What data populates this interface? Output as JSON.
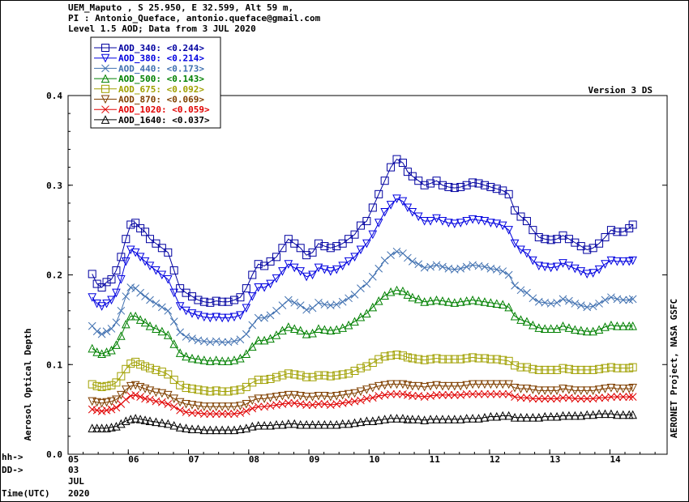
{
  "header": {
    "line1": "UEM_Maputo , S 25.950, E  32.599, Alt 59 m,",
    "line2": "PI : Antonio_Queface, antonio.queface@gmail.com",
    "line3": "Level 1.5 AOD; Data from 3 JUL 2020"
  },
  "version_label": "Version 3 DS",
  "right_label": "AERONET Project, NASA GSFC",
  "left_footer": {
    "hh": "hh->",
    "dd": "DD->",
    "time": "Time(UTC)"
  },
  "date_labels": {
    "day": "03",
    "month": "JUL",
    "year": "2020"
  },
  "chart_data": {
    "type": "line",
    "title": "",
    "xlabel": "",
    "ylabel": "Aerosol Optical Depth",
    "xlim": [
      5,
      14.95
    ],
    "ylim": [
      0.0,
      0.4
    ],
    "x_ticks": [
      "05",
      "06",
      "07",
      "08",
      "09",
      "10",
      "11",
      "12",
      "13",
      "14"
    ],
    "y_ticks": [
      "0.0",
      "0.1",
      "0.2",
      "0.3",
      "0.4"
    ],
    "legend_position": "top-left",
    "grid": false,
    "x": [
      5.4,
      5.48,
      5.56,
      5.64,
      5.72,
      5.8,
      5.88,
      5.96,
      6.04,
      6.12,
      6.2,
      6.28,
      6.36,
      6.46,
      6.56,
      6.66,
      6.76,
      6.86,
      6.96,
      7.06,
      7.16,
      7.26,
      7.36,
      7.46,
      7.56,
      7.66,
      7.76,
      7.86,
      7.96,
      8.06,
      8.16,
      8.26,
      8.36,
      8.46,
      8.56,
      8.66,
      8.76,
      8.86,
      8.96,
      9.06,
      9.16,
      9.26,
      9.36,
      9.46,
      9.56,
      9.66,
      9.76,
      9.86,
      9.96,
      10.06,
      10.16,
      10.26,
      10.36,
      10.46,
      10.56,
      10.64,
      10.72,
      10.82,
      10.92,
      11.02,
      11.12,
      11.22,
      11.32,
      11.42,
      11.52,
      11.62,
      11.72,
      11.82,
      11.92,
      12.02,
      12.12,
      12.22,
      12.32,
      12.42,
      12.52,
      12.62,
      12.72,
      12.82,
      12.92,
      13.02,
      13.12,
      13.22,
      13.32,
      13.42,
      13.52,
      13.62,
      13.72,
      13.82,
      13.92,
      14.02,
      14.12,
      14.22,
      14.32,
      14.38
    ],
    "series": [
      {
        "name": "AOD_340",
        "label": "AOD_340: <0.244>",
        "color": "#0000a0",
        "marker": "square",
        "values": [
          0.201,
          0.19,
          0.186,
          0.192,
          0.195,
          0.205,
          0.22,
          0.24,
          0.256,
          0.258,
          0.252,
          0.248,
          0.24,
          0.235,
          0.23,
          0.225,
          0.205,
          0.185,
          0.18,
          0.176,
          0.172,
          0.17,
          0.169,
          0.171,
          0.17,
          0.17,
          0.172,
          0.175,
          0.185,
          0.2,
          0.212,
          0.21,
          0.215,
          0.22,
          0.23,
          0.24,
          0.235,
          0.23,
          0.222,
          0.225,
          0.235,
          0.232,
          0.23,
          0.232,
          0.235,
          0.24,
          0.245,
          0.255,
          0.26,
          0.275,
          0.29,
          0.305,
          0.32,
          0.329,
          0.325,
          0.315,
          0.31,
          0.305,
          0.3,
          0.302,
          0.305,
          0.3,
          0.298,
          0.297,
          0.298,
          0.3,
          0.303,
          0.302,
          0.3,
          0.298,
          0.296,
          0.294,
          0.29,
          0.272,
          0.265,
          0.26,
          0.25,
          0.242,
          0.24,
          0.239,
          0.24,
          0.244,
          0.24,
          0.236,
          0.232,
          0.228,
          0.23,
          0.235,
          0.242,
          0.25,
          0.248,
          0.248,
          0.252,
          0.256
        ]
      },
      {
        "name": "AOD_380",
        "label": "AOD_380: <0.214>",
        "color": "#0000e0",
        "marker": "triangle-down",
        "values": [
          0.175,
          0.168,
          0.165,
          0.168,
          0.172,
          0.18,
          0.195,
          0.215,
          0.228,
          0.225,
          0.22,
          0.215,
          0.21,
          0.205,
          0.2,
          0.195,
          0.18,
          0.165,
          0.16,
          0.157,
          0.155,
          0.153,
          0.152,
          0.153,
          0.152,
          0.152,
          0.153,
          0.155,
          0.163,
          0.176,
          0.186,
          0.186,
          0.19,
          0.196,
          0.204,
          0.212,
          0.208,
          0.204,
          0.198,
          0.2,
          0.208,
          0.206,
          0.204,
          0.206,
          0.21,
          0.215,
          0.22,
          0.228,
          0.235,
          0.245,
          0.258,
          0.27,
          0.278,
          0.285,
          0.282,
          0.275,
          0.27,
          0.265,
          0.26,
          0.26,
          0.263,
          0.26,
          0.258,
          0.257,
          0.258,
          0.26,
          0.262,
          0.261,
          0.26,
          0.258,
          0.257,
          0.255,
          0.25,
          0.235,
          0.228,
          0.224,
          0.216,
          0.21,
          0.209,
          0.208,
          0.209,
          0.213,
          0.21,
          0.207,
          0.204,
          0.201,
          0.202,
          0.206,
          0.212,
          0.216,
          0.215,
          0.215,
          0.215,
          0.216
        ]
      },
      {
        "name": "AOD_440",
        "label": "AOD_440: <0.173>",
        "color": "#4070b0",
        "marker": "x",
        "values": [
          0.143,
          0.137,
          0.134,
          0.137,
          0.14,
          0.147,
          0.16,
          0.176,
          0.186,
          0.185,
          0.18,
          0.176,
          0.172,
          0.168,
          0.164,
          0.16,
          0.148,
          0.136,
          0.131,
          0.129,
          0.127,
          0.126,
          0.125,
          0.126,
          0.125,
          0.125,
          0.126,
          0.128,
          0.134,
          0.144,
          0.152,
          0.152,
          0.155,
          0.16,
          0.166,
          0.172,
          0.169,
          0.166,
          0.161,
          0.163,
          0.169,
          0.167,
          0.166,
          0.167,
          0.17,
          0.174,
          0.178,
          0.185,
          0.19,
          0.198,
          0.207,
          0.216,
          0.222,
          0.226,
          0.224,
          0.219,
          0.215,
          0.212,
          0.208,
          0.209,
          0.211,
          0.209,
          0.207,
          0.206,
          0.207,
          0.209,
          0.211,
          0.21,
          0.209,
          0.207,
          0.206,
          0.204,
          0.2,
          0.188,
          0.183,
          0.18,
          0.174,
          0.17,
          0.169,
          0.168,
          0.169,
          0.173,
          0.171,
          0.168,
          0.166,
          0.164,
          0.165,
          0.168,
          0.172,
          0.175,
          0.173,
          0.172,
          0.172,
          0.173
        ]
      },
      {
        "name": "AOD_500",
        "label": "AOD_500: <0.143>",
        "color": "#008000",
        "marker": "triangle",
        "values": [
          0.118,
          0.114,
          0.112,
          0.114,
          0.116,
          0.122,
          0.132,
          0.145,
          0.154,
          0.154,
          0.15,
          0.147,
          0.143,
          0.14,
          0.137,
          0.133,
          0.123,
          0.113,
          0.109,
          0.107,
          0.106,
          0.105,
          0.104,
          0.105,
          0.104,
          0.104,
          0.105,
          0.107,
          0.112,
          0.12,
          0.127,
          0.127,
          0.129,
          0.133,
          0.138,
          0.142,
          0.14,
          0.138,
          0.134,
          0.135,
          0.14,
          0.139,
          0.138,
          0.139,
          0.141,
          0.144,
          0.148,
          0.153,
          0.157,
          0.164,
          0.171,
          0.177,
          0.181,
          0.183,
          0.182,
          0.178,
          0.175,
          0.173,
          0.17,
          0.171,
          0.172,
          0.171,
          0.17,
          0.169,
          0.17,
          0.171,
          0.172,
          0.171,
          0.17,
          0.169,
          0.168,
          0.167,
          0.164,
          0.154,
          0.15,
          0.148,
          0.144,
          0.141,
          0.14,
          0.14,
          0.14,
          0.143,
          0.141,
          0.139,
          0.138,
          0.137,
          0.137,
          0.139,
          0.142,
          0.144,
          0.143,
          0.143,
          0.143,
          0.143
        ]
      },
      {
        "name": "AOD_675",
        "label": "AOD_675: <0.092>",
        "color": "#a0a000",
        "marker": "square",
        "values": [
          0.078,
          0.076,
          0.075,
          0.076,
          0.077,
          0.08,
          0.087,
          0.095,
          0.101,
          0.103,
          0.1,
          0.098,
          0.096,
          0.094,
          0.092,
          0.089,
          0.083,
          0.077,
          0.074,
          0.073,
          0.072,
          0.071,
          0.07,
          0.071,
          0.07,
          0.07,
          0.071,
          0.072,
          0.075,
          0.08,
          0.083,
          0.083,
          0.084,
          0.086,
          0.088,
          0.09,
          0.089,
          0.088,
          0.086,
          0.086,
          0.088,
          0.088,
          0.087,
          0.088,
          0.089,
          0.09,
          0.093,
          0.096,
          0.098,
          0.102,
          0.106,
          0.109,
          0.11,
          0.111,
          0.11,
          0.108,
          0.107,
          0.106,
          0.105,
          0.106,
          0.107,
          0.106,
          0.106,
          0.106,
          0.106,
          0.107,
          0.108,
          0.107,
          0.107,
          0.106,
          0.106,
          0.105,
          0.104,
          0.099,
          0.097,
          0.097,
          0.095,
          0.094,
          0.094,
          0.094,
          0.094,
          0.096,
          0.095,
          0.094,
          0.094,
          0.094,
          0.094,
          0.095,
          0.096,
          0.097,
          0.096,
          0.096,
          0.096,
          0.097
        ]
      },
      {
        "name": "AOD_870",
        "label": "AOD_870: <0.069>",
        "color": "#804000",
        "marker": "triangle-down",
        "values": [
          0.059,
          0.058,
          0.057,
          0.058,
          0.059,
          0.061,
          0.066,
          0.072,
          0.076,
          0.077,
          0.075,
          0.073,
          0.071,
          0.069,
          0.068,
          0.066,
          0.062,
          0.058,
          0.056,
          0.055,
          0.054,
          0.053,
          0.053,
          0.053,
          0.053,
          0.053,
          0.053,
          0.054,
          0.056,
          0.06,
          0.062,
          0.062,
          0.063,
          0.064,
          0.065,
          0.066,
          0.066,
          0.065,
          0.064,
          0.064,
          0.065,
          0.065,
          0.064,
          0.065,
          0.066,
          0.067,
          0.068,
          0.07,
          0.072,
          0.074,
          0.076,
          0.077,
          0.078,
          0.078,
          0.078,
          0.077,
          0.076,
          0.076,
          0.075,
          0.076,
          0.077,
          0.076,
          0.076,
          0.076,
          0.076,
          0.077,
          0.078,
          0.078,
          0.078,
          0.078,
          0.078,
          0.078,
          0.078,
          0.074,
          0.073,
          0.073,
          0.072,
          0.071,
          0.071,
          0.071,
          0.071,
          0.073,
          0.072,
          0.071,
          0.071,
          0.071,
          0.071,
          0.072,
          0.073,
          0.074,
          0.073,
          0.073,
          0.073,
          0.074
        ]
      },
      {
        "name": "AOD_1020",
        "label": "AOD_1020: <0.059>",
        "color": "#e00000",
        "marker": "x",
        "values": [
          0.05,
          0.049,
          0.048,
          0.049,
          0.05,
          0.052,
          0.056,
          0.061,
          0.065,
          0.066,
          0.064,
          0.062,
          0.061,
          0.059,
          0.058,
          0.056,
          0.053,
          0.049,
          0.047,
          0.046,
          0.046,
          0.045,
          0.045,
          0.045,
          0.045,
          0.045,
          0.045,
          0.046,
          0.048,
          0.051,
          0.053,
          0.053,
          0.054,
          0.055,
          0.056,
          0.057,
          0.057,
          0.056,
          0.055,
          0.055,
          0.056,
          0.056,
          0.055,
          0.056,
          0.057,
          0.058,
          0.059,
          0.06,
          0.062,
          0.063,
          0.065,
          0.066,
          0.067,
          0.067,
          0.067,
          0.066,
          0.065,
          0.065,
          0.064,
          0.065,
          0.066,
          0.066,
          0.066,
          0.066,
          0.066,
          0.067,
          0.067,
          0.067,
          0.067,
          0.067,
          0.067,
          0.067,
          0.067,
          0.064,
          0.063,
          0.063,
          0.062,
          0.062,
          0.062,
          0.062,
          0.062,
          0.063,
          0.063,
          0.062,
          0.062,
          0.062,
          0.062,
          0.063,
          0.063,
          0.064,
          0.064,
          0.064,
          0.064,
          0.064
        ]
      },
      {
        "name": "AOD_1640",
        "label": "AOD_1640: <0.037>",
        "color": "#000000",
        "marker": "triangle",
        "values": [
          0.029,
          0.029,
          0.029,
          0.029,
          0.03,
          0.031,
          0.034,
          0.037,
          0.039,
          0.04,
          0.039,
          0.038,
          0.037,
          0.036,
          0.035,
          0.034,
          0.032,
          0.03,
          0.029,
          0.028,
          0.028,
          0.027,
          0.027,
          0.027,
          0.027,
          0.027,
          0.027,
          0.028,
          0.029,
          0.031,
          0.032,
          0.032,
          0.032,
          0.033,
          0.033,
          0.034,
          0.034,
          0.033,
          0.033,
          0.033,
          0.033,
          0.033,
          0.033,
          0.033,
          0.034,
          0.034,
          0.035,
          0.036,
          0.037,
          0.037,
          0.038,
          0.039,
          0.04,
          0.04,
          0.04,
          0.039,
          0.039,
          0.039,
          0.038,
          0.039,
          0.039,
          0.039,
          0.039,
          0.039,
          0.039,
          0.04,
          0.04,
          0.04,
          0.041,
          0.042,
          0.042,
          0.043,
          0.043,
          0.041,
          0.041,
          0.041,
          0.041,
          0.041,
          0.042,
          0.042,
          0.042,
          0.043,
          0.043,
          0.043,
          0.043,
          0.044,
          0.044,
          0.045,
          0.045,
          0.045,
          0.044,
          0.044,
          0.044,
          0.044
        ]
      }
    ]
  }
}
